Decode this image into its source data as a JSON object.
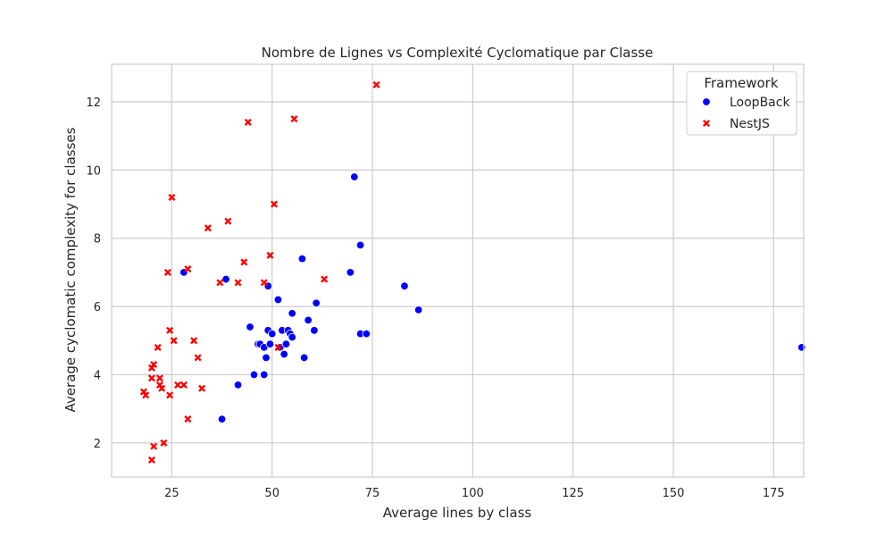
{
  "chart_data": {
    "type": "scatter",
    "title": "Nombre de Lignes vs Complexité Cyclomatique par Classe",
    "xlabel": "Average lines by class",
    "ylabel": "Average cyclomatic complexity for classes",
    "xlim": [
      10,
      182.5
    ],
    "ylim": [
      1.0,
      13.1
    ],
    "xticks": [
      25,
      50,
      75,
      100,
      125,
      150,
      175
    ],
    "yticks": [
      2,
      4,
      6,
      8,
      10,
      12
    ],
    "grid": true,
    "legend": {
      "title": "Framework",
      "placement": "top-right"
    },
    "series": [
      {
        "name": "LoopBack",
        "marker": "circle",
        "color": "#0000ff",
        "points": [
          [
            28,
            7.0
          ],
          [
            38.5,
            6.8
          ],
          [
            37.5,
            2.7
          ],
          [
            41.5,
            3.7
          ],
          [
            44.5,
            5.4
          ],
          [
            45.5,
            4.0
          ],
          [
            46.5,
            4.9
          ],
          [
            47,
            4.9
          ],
          [
            48,
            4.8
          ],
          [
            48,
            4.0
          ],
          [
            48.5,
            4.5
          ],
          [
            49,
            6.6
          ],
          [
            49,
            5.3
          ],
          [
            49.5,
            4.9
          ],
          [
            50,
            5.2
          ],
          [
            51.5,
            6.2
          ],
          [
            52,
            4.8
          ],
          [
            52.5,
            5.3
          ],
          [
            53,
            4.6
          ],
          [
            53.5,
            4.9
          ],
          [
            54,
            5.3
          ],
          [
            54.5,
            5.2
          ],
          [
            55,
            5.8
          ],
          [
            55,
            5.1
          ],
          [
            57.5,
            7.4
          ],
          [
            58,
            4.5
          ],
          [
            59,
            5.6
          ],
          [
            60.5,
            5.3
          ],
          [
            61,
            6.1
          ],
          [
            69.5,
            7.0
          ],
          [
            70.5,
            9.8
          ],
          [
            72,
            7.8
          ],
          [
            72,
            5.2
          ],
          [
            73.5,
            5.2
          ],
          [
            83,
            6.6
          ],
          [
            86.5,
            5.9
          ],
          [
            182,
            4.8
          ]
        ]
      },
      {
        "name": "NestJS",
        "marker": "x",
        "color": "#ff0000",
        "points": [
          [
            18,
            3.5
          ],
          [
            18.5,
            3.4
          ],
          [
            20,
            4.2
          ],
          [
            20,
            3.9
          ],
          [
            20,
            1.5
          ],
          [
            20.5,
            4.3
          ],
          [
            20.5,
            1.9
          ],
          [
            21.5,
            4.8
          ],
          [
            22,
            3.9
          ],
          [
            22,
            3.7
          ],
          [
            22.5,
            3.6
          ],
          [
            23,
            2.0
          ],
          [
            24,
            7.0
          ],
          [
            24.5,
            5.3
          ],
          [
            24.5,
            3.4
          ],
          [
            25,
            9.2
          ],
          [
            25.5,
            5.0
          ],
          [
            26.5,
            3.7
          ],
          [
            28,
            3.7
          ],
          [
            29,
            7.1
          ],
          [
            29,
            2.7
          ],
          [
            30.5,
            5.0
          ],
          [
            31.5,
            4.5
          ],
          [
            32.5,
            3.6
          ],
          [
            34,
            8.3
          ],
          [
            37,
            6.7
          ],
          [
            39,
            8.5
          ],
          [
            41.5,
            6.7
          ],
          [
            43,
            7.3
          ],
          [
            44,
            11.4
          ],
          [
            48,
            6.7
          ],
          [
            49.5,
            7.5
          ],
          [
            50.5,
            9.0
          ],
          [
            51.5,
            4.8
          ],
          [
            55.5,
            11.5
          ],
          [
            63,
            6.8
          ],
          [
            76,
            12.5
          ]
        ]
      }
    ]
  }
}
